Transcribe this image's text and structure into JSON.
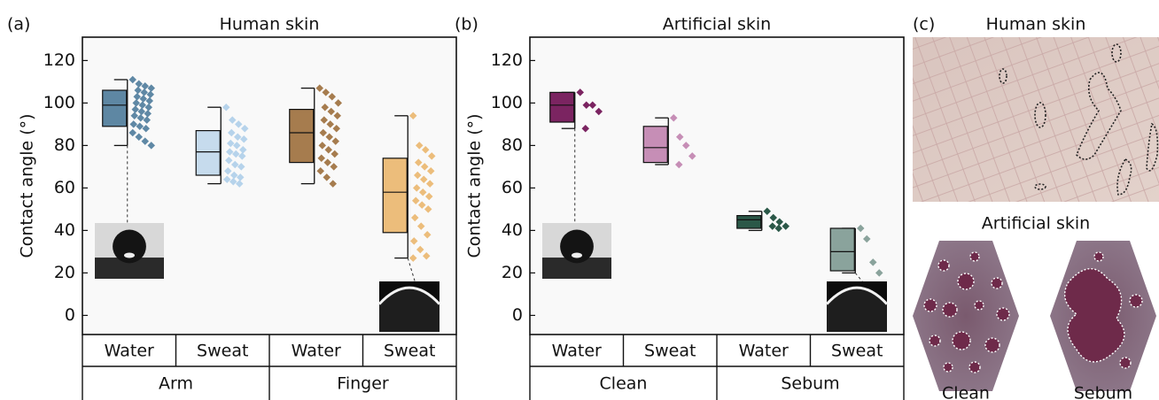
{
  "chart_data": [
    {
      "type": "box",
      "label": "(a)",
      "title": "Human skin",
      "y_label": "Contact angle (°)",
      "categories": [
        "Water",
        "Sweat",
        "Water",
        "Sweat"
      ],
      "groups": [
        "Arm",
        "Finger"
      ],
      "ylim": [
        -9,
        131
      ],
      "yticks": [
        0,
        20,
        40,
        60,
        80,
        100,
        120
      ],
      "boxes": [
        {
          "color": "#5e87a3",
          "point_color": "#5f88a5",
          "whisker_low": 80,
          "q1": 89,
          "median": 99,
          "q3": 106,
          "whisker_high": 111,
          "points": [
            111,
            109,
            108,
            107,
            106,
            105,
            104,
            103,
            102,
            101,
            100,
            99,
            98,
            97,
            96,
            95,
            94,
            93,
            92,
            90,
            89,
            88,
            86,
            84,
            82,
            80
          ]
        },
        {
          "color": "#c6dbed",
          "point_color": "#b6d3eb",
          "whisker_low": 62,
          "q1": 66,
          "median": 77,
          "q3": 87,
          "whisker_high": 98,
          "points": [
            98,
            92,
            90,
            88,
            86,
            84,
            83,
            81,
            80,
            78,
            77,
            76,
            75,
            73,
            71,
            70,
            68,
            66,
            65,
            64,
            63,
            62
          ]
        },
        {
          "color": "#a67c4e",
          "point_color": "#a67c4e",
          "whisker_low": 62,
          "q1": 72,
          "median": 86,
          "q3": 97,
          "whisker_high": 107,
          "points": [
            107,
            105,
            103,
            100,
            98,
            96,
            94,
            92,
            90,
            88,
            86,
            84,
            82,
            80,
            78,
            76,
            74,
            72,
            70,
            68,
            65,
            62
          ]
        },
        {
          "color": "#ecbd7b",
          "point_color": "#ecbd7b",
          "whisker_low": 27,
          "q1": 39,
          "median": 58,
          "q3": 74,
          "whisker_high": 94,
          "points": [
            94,
            80,
            78,
            75,
            72,
            70,
            68,
            66,
            64,
            62,
            60,
            58,
            56,
            54,
            52,
            50,
            46,
            42,
            38,
            35,
            31,
            28,
            27
          ]
        }
      ]
    },
    {
      "type": "box",
      "label": "(b)",
      "title": "Artificial skin",
      "y_label": "Contact angle (°)",
      "categories": [
        "Water",
        "Sweat",
        "Water",
        "Sweat"
      ],
      "groups": [
        "Clean",
        "Sebum"
      ],
      "ylim": [
        -9,
        131
      ],
      "yticks": [
        0,
        20,
        40,
        60,
        80,
        100,
        120
      ],
      "boxes": [
        {
          "color": "#7b2461",
          "point_color": "#7b2461",
          "whisker_low": 88,
          "q1": 91,
          "median": 99,
          "q3": 105,
          "whisker_high": 105,
          "points": [
            105,
            99,
            99,
            96,
            88
          ]
        },
        {
          "color": "#c68eb6",
          "point_color": "#c68eb6",
          "whisker_low": 71,
          "q1": 72,
          "median": 79,
          "q3": 89,
          "whisker_high": 93,
          "points": [
            93,
            84,
            80,
            75,
            71
          ]
        },
        {
          "color": "#2b5848",
          "point_color": "#2b5848",
          "whisker_low": 40,
          "q1": 41,
          "median": 45,
          "q3": 47,
          "whisker_high": 49,
          "points": [
            49,
            46,
            44,
            42,
            42,
            41
          ]
        },
        {
          "color": "#8aa39c",
          "point_color": "#8aa39c",
          "whisker_low": 20,
          "q1": 21,
          "median": 30,
          "q3": 41,
          "whisker_high": 41,
          "points": [
            41,
            36,
            25,
            20
          ]
        }
      ]
    }
  ],
  "panel_c": {
    "label": "(c)",
    "top_title": "Human skin",
    "bottom_title": "Artificial skin",
    "left_caption": "Clean",
    "right_caption": "Sebum"
  }
}
